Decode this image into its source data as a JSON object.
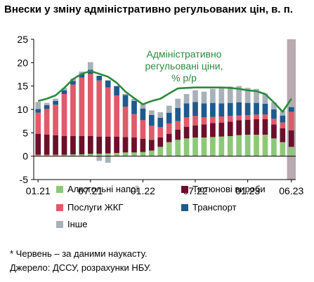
{
  "title": "Внески у зміну адміністративно регульованих цін, в. п.",
  "footnote": "* Червень – за даними наукасту.",
  "source": "Джерело: ДССУ, розрахунки НБУ.",
  "colors": {
    "alcohol": "#8dc878",
    "tobacco": "#6b0f2b",
    "utilities": "#e05a6a",
    "transport": "#1d5a8e",
    "other": "#a9b1b8",
    "line": "#2b8a3e",
    "forecast_shade": "#b8aab0"
  },
  "chart_data": {
    "type": "bar",
    "stacked": true,
    "x_ticks": [
      "01.21",
      "07.21",
      "01.22",
      "07.22",
      "01.23",
      "06.23"
    ],
    "categories": [
      "01.21",
      "02.21",
      "03.21",
      "04.21",
      "05.21",
      "06.21",
      "07.21",
      "08.21",
      "09.21",
      "10.21",
      "11.21",
      "12.21",
      "01.22",
      "02.22",
      "03.22",
      "04.22",
      "05.22",
      "06.22",
      "07.22",
      "08.22",
      "09.22",
      "10.22",
      "11.22",
      "12.22",
      "01.23",
      "02.23",
      "03.23",
      "04.23",
      "05.23",
      "06.23"
    ],
    "ylim": [
      -5,
      25
    ],
    "yticks": [
      -5,
      0,
      5,
      10,
      15,
      20,
      25
    ],
    "series": [
      {
        "name": "Алкогольні напої",
        "key": "alcohol",
        "values": [
          0.3,
          0.3,
          0.3,
          0.3,
          0.4,
          0.4,
          0.5,
          0.5,
          0.6,
          0.7,
          0.8,
          0.8,
          0.9,
          1.2,
          2.0,
          3.0,
          3.5,
          3.8,
          4.0,
          4.0,
          4.1,
          4.2,
          4.3,
          4.5,
          4.6,
          4.6,
          4.6,
          3.8,
          3.0,
          2.0
        ]
      },
      {
        "name": "Тютюнові вироби",
        "key": "tobacco",
        "values": [
          4.5,
          4.3,
          4.2,
          4.0,
          3.9,
          3.9,
          3.8,
          3.7,
          3.6,
          3.5,
          3.3,
          3.2,
          2.8,
          2.3,
          2.0,
          1.8,
          2.2,
          2.5,
          2.6,
          2.8,
          3.0,
          3.0,
          3.1,
          3.2,
          3.2,
          3.3,
          3.3,
          3.0,
          3.0,
          3.5
        ]
      },
      {
        "name": "Послуги ЖКГ",
        "key": "utilities",
        "values": [
          4.5,
          5.5,
          6.5,
          9.0,
          11.0,
          12.5,
          13.3,
          12.0,
          10.5,
          8.8,
          6.5,
          5.0,
          4.0,
          3.0,
          2.2,
          2.2,
          1.8,
          2.0,
          2.0,
          1.5,
          1.3,
          1.3,
          1.2,
          1.0,
          1.0,
          1.0,
          1.0,
          1.2,
          1.2,
          4.0
        ]
      },
      {
        "name": "Транспорт",
        "key": "transport",
        "values": [
          0.8,
          0.8,
          0.8,
          0.8,
          0.8,
          0.8,
          0.9,
          1.0,
          1.5,
          2.0,
          2.5,
          2.8,
          2.5,
          2.3,
          2.0,
          2.3,
          2.8,
          3.0,
          3.0,
          3.0,
          3.0,
          2.8,
          2.8,
          2.8,
          2.6,
          2.5,
          2.3,
          2.0,
          1.5,
          1.0
        ]
      },
      {
        "name": "Інше",
        "key": "other",
        "values": [
          1.5,
          0.5,
          0.5,
          0.5,
          0.5,
          0.5,
          1.6,
          -1.0,
          -1.4,
          0.0,
          0.2,
          0.5,
          1.0,
          1.0,
          1.2,
          1.5,
          2.0,
          2.0,
          2.5,
          2.5,
          3.0,
          3.5,
          3.5,
          3.5,
          3.2,
          3.0,
          2.2,
          1.5,
          1.0,
          0.8
        ]
      }
    ],
    "total_series": {
      "name": "Адміністративно регульовані ціни, % р/р",
      "values": [
        11.8,
        12.3,
        13.0,
        14.6,
        16.5,
        17.6,
        18.2,
        17.6,
        17.0,
        15.7,
        13.8,
        12.4,
        11.1,
        11.8,
        12.3,
        13.4,
        14.5,
        14.6,
        14.7,
        14.7,
        14.7,
        14.7,
        14.6,
        14.4,
        14.1,
        13.9,
        13.3,
        11.5,
        9.5,
        12.3
      ]
    },
    "forecast_shaded_last": 1
  }
}
